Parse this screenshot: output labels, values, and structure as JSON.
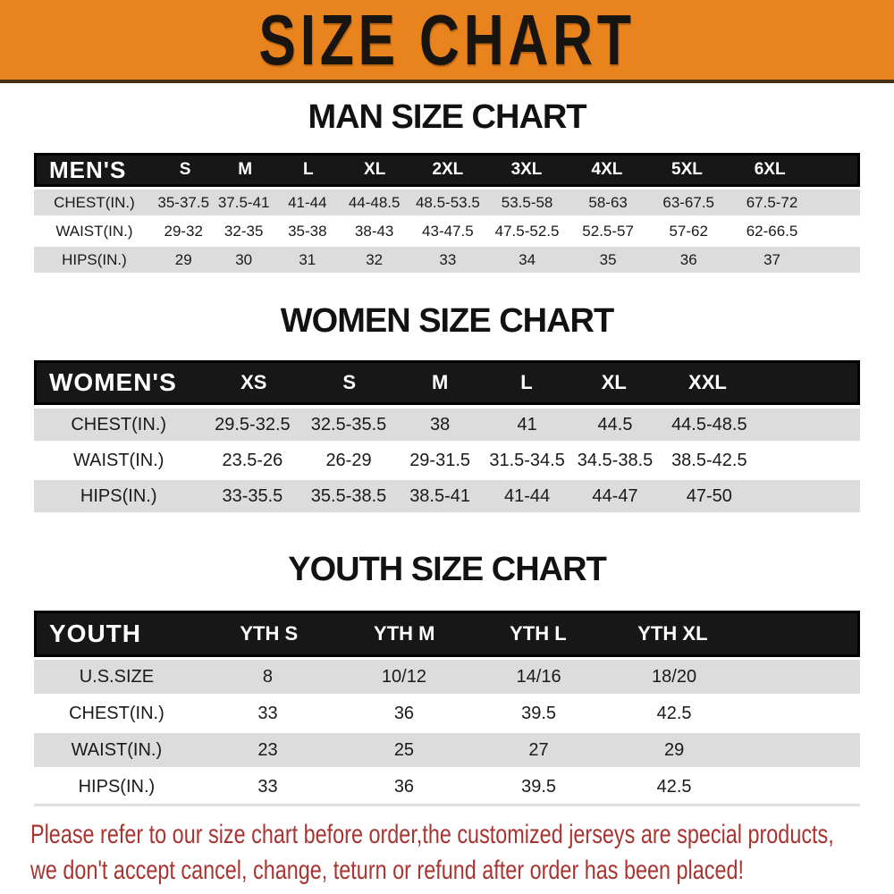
{
  "banner": {
    "title": "SIZE CHART"
  },
  "sections": [
    {
      "heading": "MAN SIZE CHART",
      "table": {
        "label": "MEN'S",
        "columns": [
          "S",
          "M",
          "L",
          "XL",
          "2XL",
          "3XL",
          "4XL",
          "5XL",
          "6XL"
        ],
        "rows": [
          {
            "label": "CHEST(IN.)",
            "values": [
              "35-37.5",
              "37.5-41",
              "41-44",
              "44-48.5",
              "48.5-53.5",
              "53.5-58",
              "58-63",
              "63-67.5",
              "67.5-72"
            ]
          },
          {
            "label": "WAIST(IN.)",
            "values": [
              "29-32",
              "32-35",
              "35-38",
              "38-43",
              "43-47.5",
              "47.5-52.5",
              "52.5-57",
              "57-62",
              "62-66.5"
            ]
          },
          {
            "label": "HIPS(IN.)",
            "values": [
              "29",
              "30",
              "31",
              "32",
              "33",
              "34",
              "35",
              "36",
              "37"
            ]
          }
        ]
      }
    },
    {
      "heading": "WOMEN SIZE CHART",
      "table": {
        "label": "WOMEN'S",
        "columns": [
          "XS",
          "S",
          "M",
          "L",
          "XL",
          "XXL"
        ],
        "rows": [
          {
            "label": "CHEST(IN.)",
            "values": [
              "29.5-32.5",
              "32.5-35.5",
              "38",
              "41",
              "44.5",
              "44.5-48.5"
            ]
          },
          {
            "label": "WAIST(IN.)",
            "values": [
              "23.5-26",
              "26-29",
              "29-31.5",
              "31.5-34.5",
              "34.5-38.5",
              "38.5-42.5"
            ]
          },
          {
            "label": "HIPS(IN.)",
            "values": [
              "33-35.5",
              "35.5-38.5",
              "38.5-41",
              "41-44",
              "44-47",
              "47-50"
            ]
          }
        ]
      }
    },
    {
      "heading": "YOUTH SIZE CHART",
      "table": {
        "label": "YOUTH",
        "columns": [
          "YTH S",
          "YTH M",
          "YTH L",
          "YTH XL"
        ],
        "rows": [
          {
            "label": "U.S.SIZE",
            "values": [
              "8",
              "10/12",
              "14/16",
              "18/20"
            ]
          },
          {
            "label": "CHEST(IN.)",
            "values": [
              "33",
              "36",
              "39.5",
              "42.5"
            ]
          },
          {
            "label": "WAIST(IN.)",
            "values": [
              "23",
              "25",
              "27",
              "29"
            ]
          },
          {
            "label": "HIPS(IN.)",
            "values": [
              "33",
              "36",
              "39.5",
              "42.5"
            ]
          }
        ]
      }
    }
  ],
  "disclaimer": {
    "line1": "Please refer to our size chart before order,the customized jerseys are special products,",
    "line2": "we don't accept cancel, change, teturn or refund after order has been placed!"
  },
  "colors": {
    "banner_orange": "#E8831E",
    "header_bar_black": "#171717",
    "row_gray": "#DCDCDC",
    "row_white": "#FFFFFF",
    "heading_black": "#121212",
    "disclaimer_red": "#A93430"
  }
}
